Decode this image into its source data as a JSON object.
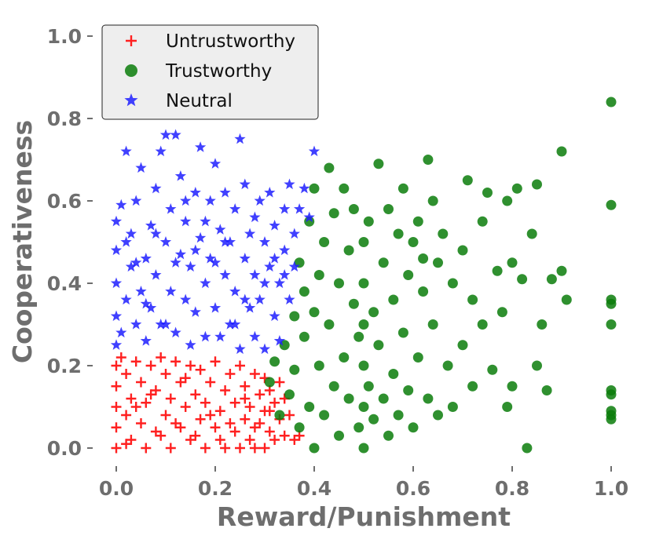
{
  "chart_data": {
    "type": "scatter",
    "title": "",
    "xlabel": "Reward/Punishment",
    "ylabel": "Cooperativeness",
    "xlim": [
      -0.03,
      1.03
    ],
    "ylim": [
      -0.03,
      1.03
    ],
    "x_ticks": [
      0.0,
      0.2,
      0.4,
      0.6,
      0.8,
      1.0
    ],
    "x_tick_labels": [
      "0.0",
      "0.2",
      "0.4",
      "0.6",
      "0.8",
      "1.0"
    ],
    "y_ticks": [
      0.0,
      0.2,
      0.4,
      0.6,
      0.8,
      1.0
    ],
    "y_tick_labels": [
      "0.0",
      "0.2",
      "0.4",
      "0.6",
      "0.8",
      "1.0"
    ],
    "grid": false,
    "legend_position": "top-left",
    "series": [
      {
        "name": "Untrustworthy",
        "marker": "plus",
        "color": "#ff2020",
        "points": [
          [
            0.0,
            0.0
          ],
          [
            0.0,
            0.05
          ],
          [
            0.0,
            0.1
          ],
          [
            0.0,
            0.15
          ],
          [
            0.0,
            0.2
          ],
          [
            0.01,
            0.22
          ],
          [
            0.02,
            0.08
          ],
          [
            0.02,
            0.18
          ],
          [
            0.03,
            0.02
          ],
          [
            0.03,
            0.12
          ],
          [
            0.04,
            0.21
          ],
          [
            0.05,
            0.06
          ],
          [
            0.05,
            0.16
          ],
          [
            0.06,
            0.0
          ],
          [
            0.06,
            0.11
          ],
          [
            0.07,
            0.2
          ],
          [
            0.08,
            0.04
          ],
          [
            0.08,
            0.14
          ],
          [
            0.09,
            0.22
          ],
          [
            0.1,
            0.08
          ],
          [
            0.1,
            0.18
          ],
          [
            0.11,
            0.0
          ],
          [
            0.11,
            0.12
          ],
          [
            0.12,
            0.21
          ],
          [
            0.13,
            0.05
          ],
          [
            0.13,
            0.16
          ],
          [
            0.14,
            0.1
          ],
          [
            0.15,
            0.2
          ],
          [
            0.15,
            0.02
          ],
          [
            0.16,
            0.13
          ],
          [
            0.17,
            0.07
          ],
          [
            0.17,
            0.19
          ],
          [
            0.18,
            0.0
          ],
          [
            0.18,
            0.11
          ],
          [
            0.19,
            0.16
          ],
          [
            0.2,
            0.05
          ],
          [
            0.2,
            0.21
          ],
          [
            0.21,
            0.09
          ],
          [
            0.22,
            0.14
          ],
          [
            0.22,
            0.0
          ],
          [
            0.23,
            0.18
          ],
          [
            0.24,
            0.04
          ],
          [
            0.24,
            0.11
          ],
          [
            0.25,
            0.2
          ],
          [
            0.25,
            0.0
          ],
          [
            0.26,
            0.07
          ],
          [
            0.26,
            0.15
          ],
          [
            0.27,
            0.02
          ],
          [
            0.27,
            0.1
          ],
          [
            0.28,
            0.18
          ],
          [
            0.28,
            0.05
          ],
          [
            0.29,
            0.13
          ],
          [
            0.3,
            0.0
          ],
          [
            0.3,
            0.09
          ],
          [
            0.3,
            0.17
          ],
          [
            0.31,
            0.04
          ],
          [
            0.31,
            0.14
          ],
          [
            0.32,
            0.11
          ],
          [
            0.32,
            0.02
          ],
          [
            0.33,
            0.07
          ],
          [
            0.33,
            0.16
          ],
          [
            0.34,
            0.12
          ],
          [
            0.34,
            0.03
          ],
          [
            0.35,
            0.08
          ],
          [
            0.36,
            0.02
          ],
          [
            0.37,
            0.03
          ],
          [
            0.02,
            0.01
          ],
          [
            0.04,
            0.1
          ],
          [
            0.07,
            0.13
          ],
          [
            0.09,
            0.03
          ],
          [
            0.12,
            0.06
          ],
          [
            0.14,
            0.17
          ],
          [
            0.16,
            0.03
          ],
          [
            0.19,
            0.08
          ],
          [
            0.21,
            0.02
          ],
          [
            0.23,
            0.06
          ],
          [
            0.26,
            0.12
          ],
          [
            0.28,
            0.0
          ],
          [
            0.29,
            0.06
          ],
          [
            0.31,
            0.09
          ]
        ]
      },
      {
        "name": "Trustworthy",
        "marker": "circle",
        "color": "#0a7d0a",
        "points": [
          [
            0.31,
            0.16
          ],
          [
            0.32,
            0.21
          ],
          [
            0.33,
            0.08
          ],
          [
            0.34,
            0.25
          ],
          [
            0.35,
            0.13
          ],
          [
            0.36,
            0.32
          ],
          [
            0.36,
            0.19
          ],
          [
            0.37,
            0.45
          ],
          [
            0.37,
            0.05
          ],
          [
            0.38,
            0.27
          ],
          [
            0.38,
            0.38
          ],
          [
            0.39,
            0.55
          ],
          [
            0.39,
            0.1
          ],
          [
            0.4,
            0.63
          ],
          [
            0.4,
            0.33
          ],
          [
            0.4,
            0.0
          ],
          [
            0.41,
            0.2
          ],
          [
            0.41,
            0.42
          ],
          [
            0.42,
            0.5
          ],
          [
            0.42,
            0.08
          ],
          [
            0.43,
            0.68
          ],
          [
            0.43,
            0.3
          ],
          [
            0.44,
            0.15
          ],
          [
            0.44,
            0.57
          ],
          [
            0.45,
            0.4
          ],
          [
            0.45,
            0.03
          ],
          [
            0.46,
            0.63
          ],
          [
            0.46,
            0.22
          ],
          [
            0.47,
            0.48
          ],
          [
            0.47,
            0.12
          ],
          [
            0.48,
            0.35
          ],
          [
            0.48,
            0.58
          ],
          [
            0.49,
            0.05
          ],
          [
            0.49,
            0.27
          ],
          [
            0.5,
            0.0
          ],
          [
            0.5,
            0.1
          ],
          [
            0.5,
            0.2
          ],
          [
            0.5,
            0.3
          ],
          [
            0.5,
            0.4
          ],
          [
            0.5,
            0.5
          ],
          [
            0.51,
            0.15
          ],
          [
            0.51,
            0.55
          ],
          [
            0.52,
            0.33
          ],
          [
            0.52,
            0.07
          ],
          [
            0.53,
            0.69
          ],
          [
            0.53,
            0.25
          ],
          [
            0.54,
            0.45
          ],
          [
            0.54,
            0.12
          ],
          [
            0.55,
            0.58
          ],
          [
            0.55,
            0.03
          ],
          [
            0.56,
            0.36
          ],
          [
            0.56,
            0.18
          ],
          [
            0.57,
            0.52
          ],
          [
            0.57,
            0.08
          ],
          [
            0.58,
            0.63
          ],
          [
            0.58,
            0.28
          ],
          [
            0.59,
            0.42
          ],
          [
            0.59,
            0.14
          ],
          [
            0.6,
            0.5
          ],
          [
            0.6,
            0.05
          ],
          [
            0.61,
            0.55
          ],
          [
            0.61,
            0.22
          ],
          [
            0.62,
            0.38
          ],
          [
            0.62,
            0.46
          ],
          [
            0.63,
            0.7
          ],
          [
            0.63,
            0.12
          ],
          [
            0.64,
            0.6
          ],
          [
            0.64,
            0.3
          ],
          [
            0.65,
            0.45
          ],
          [
            0.65,
            0.08
          ],
          [
            0.66,
            0.52
          ],
          [
            0.67,
            0.2
          ],
          [
            0.68,
            0.4
          ],
          [
            0.68,
            0.1
          ],
          [
            0.7,
            0.48
          ],
          [
            0.7,
            0.25
          ],
          [
            0.71,
            0.65
          ],
          [
            0.72,
            0.36
          ],
          [
            0.72,
            0.15
          ],
          [
            0.74,
            0.55
          ],
          [
            0.74,
            0.3
          ],
          [
            0.75,
            0.62
          ],
          [
            0.76,
            0.19
          ],
          [
            0.77,
            0.43
          ],
          [
            0.78,
            0.33
          ],
          [
            0.79,
            0.6
          ],
          [
            0.79,
            0.1
          ],
          [
            0.8,
            0.15
          ],
          [
            0.8,
            0.45
          ],
          [
            0.81,
            0.63
          ],
          [
            0.82,
            0.41
          ],
          [
            0.83,
            0.0
          ],
          [
            0.84,
            0.52
          ],
          [
            0.85,
            0.64
          ],
          [
            0.85,
            0.2
          ],
          [
            0.86,
            0.3
          ],
          [
            0.87,
            0.14
          ],
          [
            0.88,
            0.41
          ],
          [
            0.9,
            0.72
          ],
          [
            0.9,
            0.43
          ],
          [
            0.91,
            0.36
          ],
          [
            1.0,
            0.84
          ],
          [
            1.0,
            0.59
          ],
          [
            1.0,
            0.36
          ],
          [
            1.0,
            0.35
          ],
          [
            1.0,
            0.3
          ],
          [
            1.0,
            0.14
          ],
          [
            1.0,
            0.13
          ],
          [
            1.0,
            0.09
          ],
          [
            1.0,
            0.08
          ],
          [
            1.0,
            0.07
          ]
        ]
      },
      {
        "name": "Neutral",
        "marker": "star",
        "color": "#1f1fff",
        "points": [
          [
            0.0,
            0.25
          ],
          [
            0.0,
            0.32
          ],
          [
            0.0,
            0.4
          ],
          [
            0.0,
            0.48
          ],
          [
            0.0,
            0.55
          ],
          [
            0.01,
            0.59
          ],
          [
            0.01,
            0.28
          ],
          [
            0.02,
            0.36
          ],
          [
            0.02,
            0.72
          ],
          [
            0.03,
            0.44
          ],
          [
            0.03,
            0.52
          ],
          [
            0.04,
            0.3
          ],
          [
            0.04,
            0.6
          ],
          [
            0.05,
            0.38
          ],
          [
            0.05,
            0.68
          ],
          [
            0.06,
            0.46
          ],
          [
            0.06,
            0.26
          ],
          [
            0.07,
            0.54
          ],
          [
            0.07,
            0.34
          ],
          [
            0.08,
            0.63
          ],
          [
            0.08,
            0.42
          ],
          [
            0.09,
            0.72
          ],
          [
            0.09,
            0.3
          ],
          [
            0.1,
            0.5
          ],
          [
            0.1,
            0.76
          ],
          [
            0.11,
            0.38
          ],
          [
            0.11,
            0.58
          ],
          [
            0.12,
            0.76
          ],
          [
            0.12,
            0.28
          ],
          [
            0.13,
            0.47
          ],
          [
            0.13,
            0.66
          ],
          [
            0.14,
            0.36
          ],
          [
            0.14,
            0.55
          ],
          [
            0.15,
            0.25
          ],
          [
            0.15,
            0.44
          ],
          [
            0.16,
            0.62
          ],
          [
            0.16,
            0.33
          ],
          [
            0.17,
            0.73
          ],
          [
            0.17,
            0.51
          ],
          [
            0.18,
            0.4
          ],
          [
            0.18,
            0.27
          ],
          [
            0.19,
            0.6
          ],
          [
            0.19,
            0.46
          ],
          [
            0.2,
            0.34
          ],
          [
            0.2,
            0.69
          ],
          [
            0.21,
            0.53
          ],
          [
            0.21,
            0.27
          ],
          [
            0.22,
            0.42
          ],
          [
            0.22,
            0.62
          ],
          [
            0.23,
            0.3
          ],
          [
            0.23,
            0.5
          ],
          [
            0.24,
            0.38
          ],
          [
            0.24,
            0.58
          ],
          [
            0.25,
            0.75
          ],
          [
            0.25,
            0.24
          ],
          [
            0.26,
            0.46
          ],
          [
            0.26,
            0.64
          ],
          [
            0.27,
            0.34
          ],
          [
            0.27,
            0.52
          ],
          [
            0.28,
            0.27
          ],
          [
            0.28,
            0.42
          ],
          [
            0.29,
            0.6
          ],
          [
            0.29,
            0.36
          ],
          [
            0.3,
            0.5
          ],
          [
            0.3,
            0.24
          ],
          [
            0.31,
            0.44
          ],
          [
            0.31,
            0.62
          ],
          [
            0.32,
            0.32
          ],
          [
            0.32,
            0.54
          ],
          [
            0.33,
            0.4
          ],
          [
            0.33,
            0.26
          ],
          [
            0.34,
            0.58
          ],
          [
            0.34,
            0.48
          ],
          [
            0.35,
            0.36
          ],
          [
            0.35,
            0.64
          ],
          [
            0.36,
            0.52
          ],
          [
            0.36,
            0.44
          ],
          [
            0.37,
            0.58
          ],
          [
            0.38,
            0.63
          ],
          [
            0.39,
            0.56
          ],
          [
            0.4,
            0.72
          ],
          [
            0.02,
            0.5
          ],
          [
            0.04,
            0.45
          ],
          [
            0.06,
            0.35
          ],
          [
            0.08,
            0.52
          ],
          [
            0.1,
            0.3
          ],
          [
            0.12,
            0.45
          ],
          [
            0.14,
            0.6
          ],
          [
            0.16,
            0.48
          ],
          [
            0.18,
            0.55
          ],
          [
            0.2,
            0.45
          ],
          [
            0.22,
            0.5
          ],
          [
            0.24,
            0.3
          ],
          [
            0.26,
            0.36
          ],
          [
            0.28,
            0.56
          ],
          [
            0.3,
            0.4
          ],
          [
            0.32,
            0.46
          ],
          [
            0.34,
            0.42
          ]
        ]
      }
    ]
  }
}
